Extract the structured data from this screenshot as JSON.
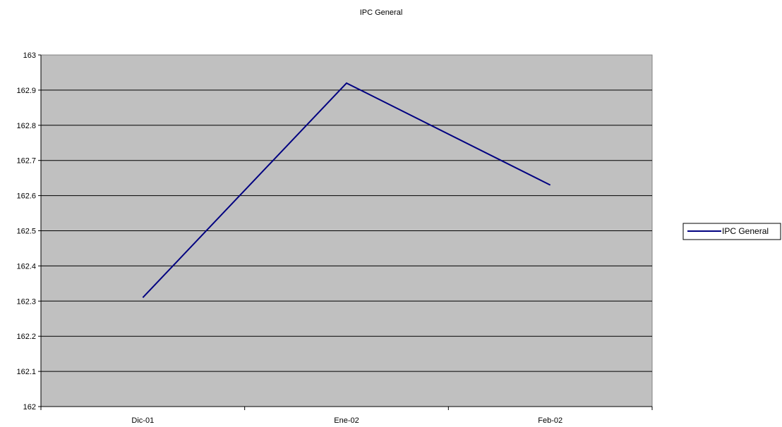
{
  "chart_data": {
    "type": "line",
    "title": "IPC General",
    "xlabel": "",
    "ylabel": "",
    "categories": [
      "Dic-01",
      "Ene-02",
      "Feb-02"
    ],
    "series": [
      {
        "name": "IPC General",
        "values": [
          162.31,
          162.92,
          162.63
        ]
      }
    ],
    "ylim": [
      162,
      163
    ],
    "yticks": [
      "162",
      "162.1",
      "162.2",
      "162.3",
      "162.4",
      "162.5",
      "162.6",
      "162.7",
      "162.8",
      "162.9",
      "163"
    ],
    "grid": true,
    "legend_position": "right",
    "colors": {
      "plot_background": "#c0c0c0",
      "series_line": "#000080",
      "gridline": "#000000"
    }
  }
}
